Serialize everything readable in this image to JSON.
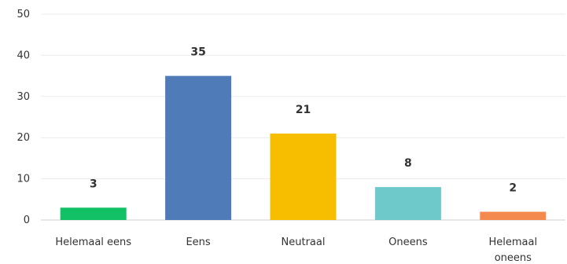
{
  "chart_data": {
    "type": "bar",
    "title": "",
    "xlabel": "",
    "ylabel": "",
    "ylim": [
      0,
      50
    ],
    "yticks": [
      0,
      10,
      20,
      30,
      40,
      50
    ],
    "grid": true,
    "categories": [
      [
        "Helemaal eens"
      ],
      [
        "Eens"
      ],
      [
        "Neutraal"
      ],
      [
        "Oneens"
      ],
      [
        "Helemaal",
        "oneens"
      ]
    ],
    "values": [
      3,
      35,
      21,
      8,
      2
    ],
    "data_labels": [
      "3",
      "35",
      "21",
      "8",
      "2"
    ],
    "colors": [
      "#12c065",
      "#4f7cb8",
      "#f7be00",
      "#6ec9cb",
      "#f58a4e"
    ]
  }
}
